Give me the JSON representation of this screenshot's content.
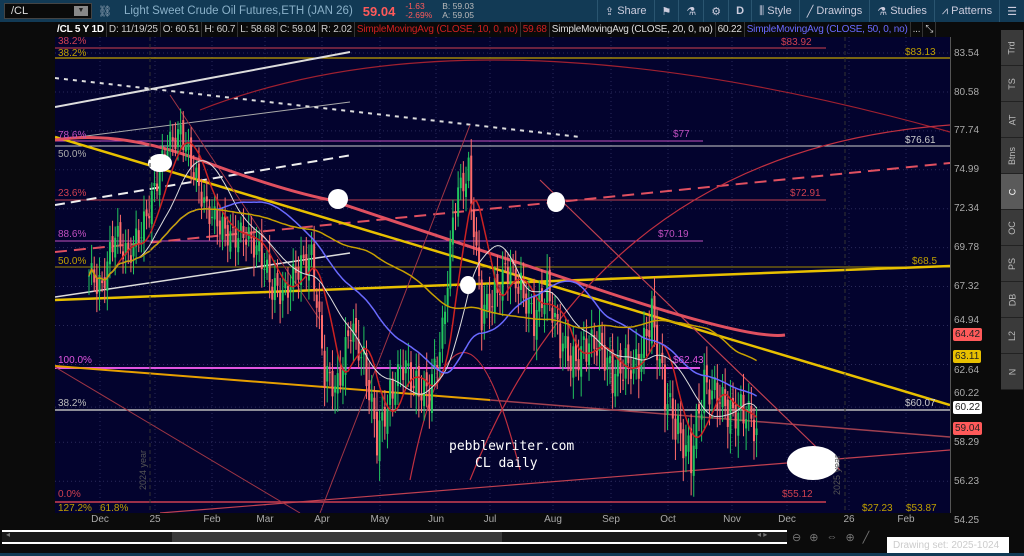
{
  "header": {
    "symbol": "/CL",
    "description": "Light Sweet Crude Oil Futures,ETH (JAN 26)",
    "last": "59.04",
    "change": "-1.63",
    "change_pct": "-2.69%",
    "bid": "B: 59.03",
    "ask": "A: 59.05",
    "toolbar": {
      "share": "Share",
      "d": "D",
      "style": "Style",
      "drawings": "Drawings",
      "studies": "Studies",
      "patterns": "Patterns"
    }
  },
  "legend": {
    "title": "/CL 5 Y 1D",
    "date": "D: 11/19/25",
    "open": "O: 60.51",
    "high": "H: 60.7",
    "low": "L: 58.68",
    "close": "C: 59.04",
    "range": "R: 2.02",
    "sma10": "SimpleMovingAvg (CLOSE, 10, 0, no)",
    "sma10_val": "59.68",
    "sma20": "SimpleMovingAvg (CLOSE, 20, 0, no)",
    "sma20_val": "60.22",
    "sma50": "SimpleMovingAvg (CLOSE, 50, 0, no)",
    "more": "..."
  },
  "price_axis": {
    "scale": "log",
    "ticks": [
      "83.54",
      "80.58",
      "77.74",
      "74.99",
      "72.34",
      "69.78",
      "67.32",
      "64.94",
      "62.64",
      "60.22",
      "58.29",
      "56.23",
      "54.25"
    ],
    "badges": [
      {
        "label": "64.42",
        "color": "#ff5a5a"
      },
      {
        "label": "63.11",
        "color": "#e8c000"
      },
      {
        "label": "60.22",
        "color": "#ffffff"
      },
      {
        "label": "59.04",
        "color": "#ff5a5a"
      }
    ]
  },
  "time_axis": [
    "Dec",
    "25",
    "Feb",
    "Mar",
    "Apr",
    "May",
    "Jun",
    "Jul",
    "Aug",
    "Sep",
    "Oct",
    "Nov",
    "Dec",
    "26",
    "Feb"
  ],
  "fib_labels": {
    "r382a": "38.2%",
    "y382": "38.2%",
    "m786": "78.6%",
    "w500": "50.0%",
    "r236": "23.6%",
    "m886": "88.6%",
    "y500": "50.0%",
    "m1000": "100.0%",
    "w382": "38.2%",
    "r000": "0.0%",
    "y1272": "127.2%",
    "y618": "61.8%"
  },
  "price_labels": {
    "p8392": "$83.92",
    "p8313": "$83.13",
    "p77": "$77",
    "p7661": "$76.61",
    "p7291": "$72.91",
    "p7019": "$70.19",
    "p685": "$68.5",
    "p6243": "$62.43",
    "p6007": "$60.07",
    "p5512": "$55.12",
    "p2723": "$27.23",
    "p5387": "$53.87"
  },
  "year_labels": {
    "y2024": "2024 year",
    "y2025": "2025 year"
  },
  "watermark": {
    "line1": "pebblewriter.com",
    "line2": "CL daily"
  },
  "sidebar": [
    "Trd",
    "TS",
    "AT",
    "Btns",
    "C",
    "OC",
    "PS",
    "DB",
    "L2",
    "N"
  ],
  "sidebar_active": "C",
  "drawing_set": "Drawing set: 2025-1024",
  "colors": {
    "background": "#03032e",
    "up": "#22c55e",
    "down": "#ff6b6b",
    "sma10": "#cc2222",
    "sma20": "#dddddd",
    "sma50": "#6a6aff",
    "fib_yellow": "#e8c000",
    "fib_magenta": "#e055e0"
  },
  "chart_data": {
    "type": "candlestick",
    "interval": "1D",
    "start_week": "2024-11-25",
    "approx_weekly_closes": [
      68.0,
      67.5,
      70.5,
      69.5,
      70.6,
      73.9,
      76.5,
      77.9,
      74.7,
      72.5,
      71.0,
      70.7,
      70.4,
      69.8,
      67.0,
      67.2,
      68.3,
      69.4,
      61.9,
      61.5,
      64.7,
      63.0,
      58.3,
      61.0,
      62.5,
      61.5,
      60.8,
      64.6,
      72.9,
      75.0,
      65.5,
      67.0,
      68.4,
      67.3,
      65.2,
      67.3,
      63.9,
      62.8,
      63.7,
      64.0,
      61.9,
      62.7,
      62.7,
      65.7,
      60.9,
      58.9,
      57.5,
      61.5,
      60.9,
      59.8,
      60.1,
      59.04
    ]
  }
}
